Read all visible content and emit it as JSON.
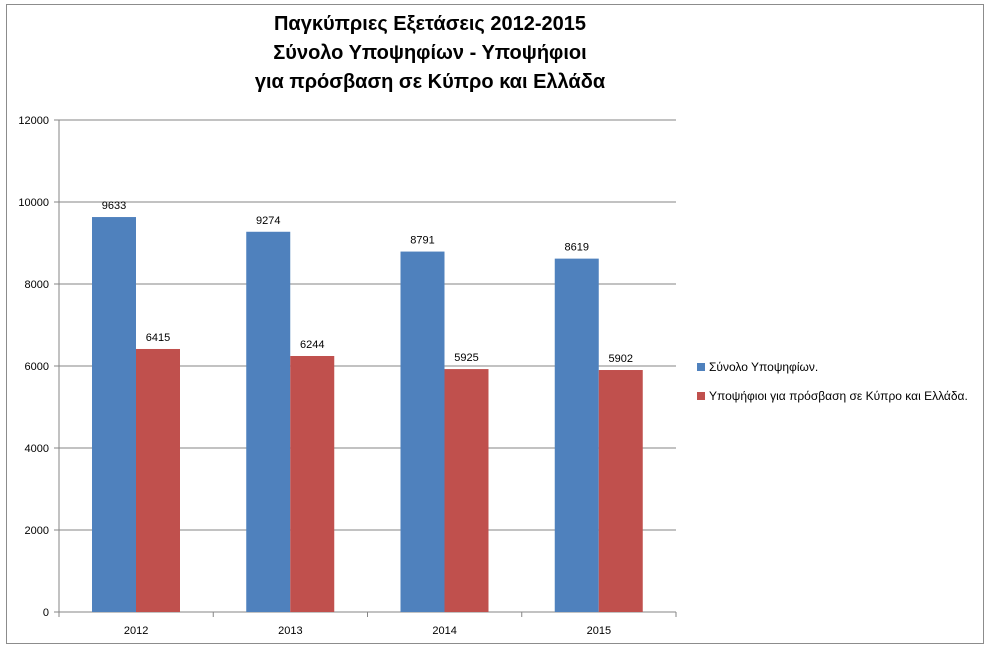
{
  "chart_data": {
    "type": "bar",
    "title_lines": [
      "Παγκύπριες Εξετάσεις 2012-2015",
      "Σύνολο Υποψηφίων - Υποψήφιοι",
      "για πρόσβαση σε Κύπρο και Ελλάδα"
    ],
    "categories": [
      "2012",
      "2013",
      "2014",
      "2015"
    ],
    "series": [
      {
        "name": "Σύνολο Υποψηφίων.",
        "values": [
          9633,
          9274,
          8791,
          8619
        ],
        "color": "#4f81bd"
      },
      {
        "name": "Υποψήφιοι  για πρόσβαση σε Κύπρο και Ελλάδα.",
        "values": [
          6415,
          6244,
          5925,
          5902
        ],
        "color": "#c0504d"
      }
    ],
    "ylim": [
      0,
      12000
    ],
    "y_ticks": [
      "0",
      "2000",
      "4000",
      "6000",
      "8000",
      "10000",
      "12000"
    ],
    "grid": true,
    "legend_position": "right",
    "data_labels": true
  }
}
